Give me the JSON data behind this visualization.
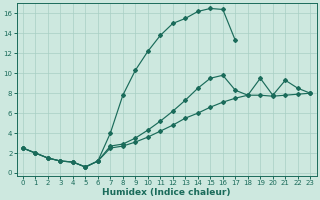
{
  "background_color": "#cde8df",
  "grid_color": "#a8cfc4",
  "line_color": "#1a6b5a",
  "xlim": [
    -0.5,
    23.5
  ],
  "ylim": [
    -0.3,
    17
  ],
  "xticks": [
    0,
    1,
    2,
    3,
    4,
    5,
    6,
    7,
    8,
    9,
    10,
    11,
    12,
    13,
    14,
    15,
    16,
    17,
    18,
    19,
    20,
    21,
    22,
    23
  ],
  "yticks": [
    0,
    2,
    4,
    6,
    8,
    10,
    12,
    14,
    16
  ],
  "xlabel": "Humidex (Indice chaleur)",
  "xlabel_fontsize": 6.5,
  "tick_fontsize": 5.0,
  "line1_x": [
    0,
    1,
    2,
    3,
    4,
    5,
    6,
    7,
    8,
    9,
    10,
    11,
    12,
    13,
    14,
    15,
    16,
    17
  ],
  "line1_y": [
    2.5,
    2.0,
    1.5,
    1.2,
    1.1,
    0.6,
    1.2,
    4.0,
    7.8,
    10.3,
    12.2,
    13.8,
    15.0,
    15.5,
    16.2,
    16.5,
    16.4,
    13.3
  ],
  "line2_x": [
    0,
    1,
    2,
    3,
    4,
    5,
    6,
    7,
    8,
    9,
    10,
    11,
    12,
    13,
    14,
    15,
    16,
    17,
    18,
    19,
    20,
    21,
    22,
    23
  ],
  "line2_y": [
    2.5,
    2.0,
    1.5,
    1.2,
    1.1,
    0.6,
    1.2,
    2.7,
    2.9,
    3.5,
    4.3,
    5.2,
    6.2,
    7.3,
    8.5,
    9.5,
    9.8,
    8.3,
    7.8,
    9.5,
    7.8,
    9.3,
    8.5,
    8.0
  ],
  "line3_x": [
    0,
    1,
    2,
    3,
    4,
    5,
    6,
    7,
    8,
    9,
    10,
    11,
    12,
    13,
    14,
    15,
    16,
    17,
    18,
    19,
    20,
    21,
    22,
    23
  ],
  "line3_y": [
    2.5,
    2.0,
    1.5,
    1.2,
    1.1,
    0.6,
    1.2,
    2.5,
    2.7,
    3.1,
    3.6,
    4.2,
    4.8,
    5.5,
    6.0,
    6.6,
    7.1,
    7.5,
    7.8,
    7.8,
    7.7,
    7.8,
    7.9,
    8.0
  ]
}
